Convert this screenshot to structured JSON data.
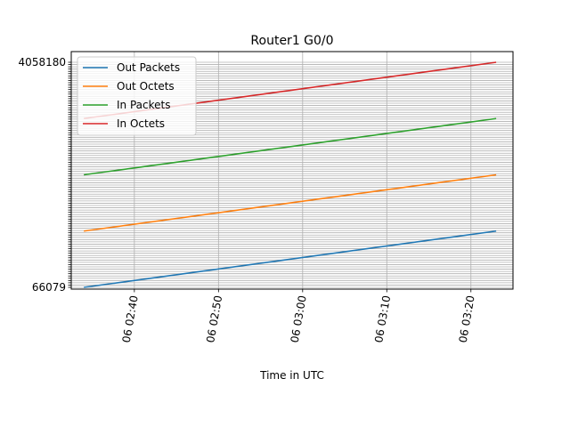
{
  "chart_data": {
    "type": "line",
    "title": "Router1 G0/0",
    "xlabel": "Time in UTC",
    "ylabel": "",
    "x_ticks": [
      "06 02:40",
      "06 02:50",
      "06 03:00",
      "06 03:10",
      "06 03:20"
    ],
    "x_tick_minutes": [
      40,
      50,
      60,
      70,
      80
    ],
    "xlim_minutes": [
      32.5,
      85
    ],
    "x_start_minute": 34,
    "x_end_minute": 83,
    "grid": true,
    "legend_position": "top-left",
    "series": [
      {
        "name": "Out Packets",
        "color": "#1f77b4",
        "start": 0.0,
        "end": 0.25
      },
      {
        "name": "Out Octets",
        "color": "#ff7f0e",
        "start": 0.25,
        "end": 0.5
      },
      {
        "name": "In Packets",
        "color": "#2ca02c",
        "start": 0.5,
        "end": 0.75
      },
      {
        "name": "In Octets",
        "color": "#d62728",
        "start": 0.75,
        "end": 1.0
      }
    ],
    "y_tick_count": 100,
    "y_visible_labels": [
      "66079",
      "4058180"
    ]
  }
}
